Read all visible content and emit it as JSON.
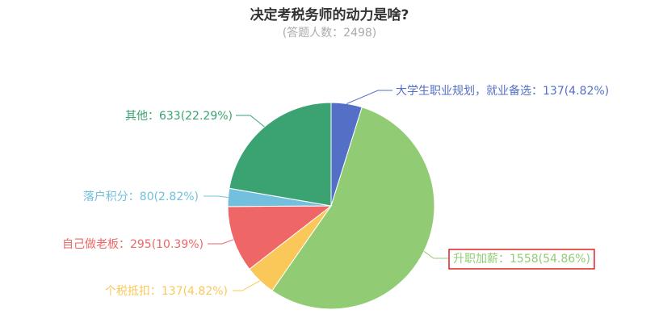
{
  "chart_data": {
    "type": "pie",
    "title": "决定考税务师的动力是啥?",
    "subtitle": "(答题人数：2498)",
    "slices": [
      {
        "name": "大学生职业规划，就业备选",
        "label": "大学生职业规划，就业备选：137(4.82%)",
        "value": 137,
        "percent": 4.82,
        "color": "#5470c6"
      },
      {
        "name": "升职加薪",
        "label": "升职加薪：1558(54.86%)",
        "value": 1558,
        "percent": 54.86,
        "color": "#91cc75",
        "highlighted": true
      },
      {
        "name": "个税抵扣",
        "label": "个税抵扣：137(4.82%)",
        "value": 137,
        "percent": 4.82,
        "color": "#fac858"
      },
      {
        "name": "自己做老板",
        "label": "自己做老板：295(10.39%)",
        "value": 295,
        "percent": 10.39,
        "color": "#ee6666"
      },
      {
        "name": "落户积分",
        "label": "落户积分：80(2.82%)",
        "value": 80,
        "percent": 2.82,
        "color": "#73c0de"
      },
      {
        "name": "其他",
        "label": "其他：633(22.29%)",
        "value": 633,
        "percent": 22.29,
        "color": "#3ba272"
      }
    ],
    "highlight_border_color": "#e02020"
  }
}
